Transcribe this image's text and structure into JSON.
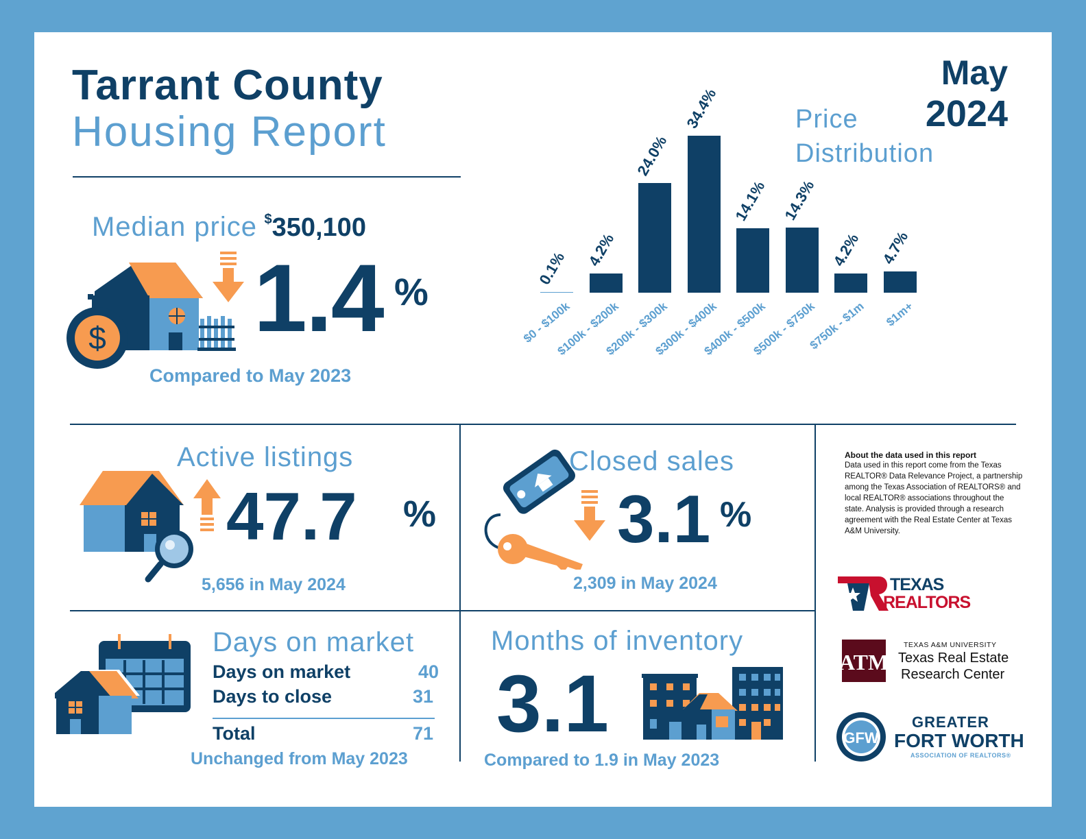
{
  "header": {
    "title_line1": "Tarrant County",
    "title_line2": "Housing Report",
    "month": "May",
    "year": "2024"
  },
  "median": {
    "label": "Median price",
    "currency": "$",
    "value": "350,100",
    "change": "1.4",
    "change_unit": "%",
    "direction": "down",
    "compare": "Compared to May 2023"
  },
  "price_distribution": {
    "title_line1": "Price",
    "title_line2": "Distribution"
  },
  "chart_data": {
    "type": "bar",
    "categories": [
      "$0 - $100k",
      "$100k - $200k",
      "$200k - $300k",
      "$300k - $400k",
      "$400k - $500k",
      "$500k - $750k",
      "$750k - $1m",
      "$1m+"
    ],
    "values": [
      0.1,
      4.2,
      24.0,
      34.4,
      14.1,
      14.3,
      4.2,
      4.7
    ],
    "data_labels": [
      "0.1%",
      "4.2%",
      "24.0%",
      "34.4%",
      "14.1%",
      "14.3%",
      "4.2%",
      "4.7%"
    ],
    "title": "Price Distribution",
    "color": "#0f4066"
  },
  "active": {
    "label": "Active listings",
    "change": "47.7",
    "change_unit": "%",
    "direction": "up",
    "sub": "5,656 in May 2024"
  },
  "closed": {
    "label": "Closed sales",
    "change": "3.1",
    "change_unit": "%",
    "direction": "down",
    "sub": "2,309 in May 2024"
  },
  "about": {
    "title": "About the data used in this report",
    "body": "Data used in this report come from the Texas REALTOR® Data Relevance Project, a partnership among the Texas Association of REALTORS® and local REALTOR® associations throughout the state. Analysis is provided through a research agreement with the Real Estate Center at Texas A&M University."
  },
  "days": {
    "label": "Days on market",
    "rows": [
      {
        "name": "Days on market",
        "value": "40"
      },
      {
        "name": "Days to close",
        "value": "31"
      }
    ],
    "total_name": "Total",
    "total_value": "71",
    "compare": "Unchanged from May 2023"
  },
  "inventory": {
    "label": "Months of inventory",
    "value": "3.1",
    "compare": "Compared to 1.9 in May 2023"
  },
  "logos": {
    "texas_realtors_1": "TEXAS",
    "texas_realtors_2": "REALTORS",
    "tamu_1": "TEXAS A&M UNIVERSITY",
    "tamu_2": "Texas Real Estate",
    "tamu_3": "Research Center",
    "gfw_1": "GREATER",
    "gfw_2": "FORT WORTH",
    "gfw_3": "ASSOCIATION OF REALTORS®"
  },
  "colors": {
    "navy": "#0f4066",
    "light_blue": "#5c9fd0",
    "orange": "#f79b50",
    "frame": "#5fa3d0",
    "maroon": "#5b0b1c",
    "red": "#c8102e"
  }
}
